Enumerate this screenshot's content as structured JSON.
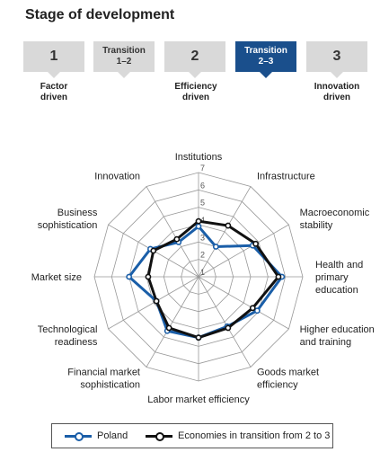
{
  "title": "Stage of development",
  "stages": [
    {
      "label": "1",
      "size": "big",
      "active": false
    },
    {
      "label": "Transition\n1–2",
      "size": "small",
      "active": false
    },
    {
      "label": "2",
      "size": "big",
      "active": false
    },
    {
      "label": "Transition\n2–3",
      "size": "small",
      "active": true
    },
    {
      "label": "3",
      "size": "big",
      "active": false
    }
  ],
  "stage_labels": [
    "Factor\ndriven",
    "Efficiency\ndriven",
    "Innovation\ndriven"
  ],
  "colors": {
    "poland": "#1a5ea8",
    "transition": "#111111",
    "grid": "#999999"
  },
  "chart_data": {
    "type": "radar",
    "categories": [
      "Institutions",
      "Infrastructure",
      "Macroeconomic stability",
      "Health and primary education",
      "Higher education and training",
      "Goods market efficiency",
      "Labor market efficiency",
      "Financial market sophistication",
      "Technological readiness",
      "Market size",
      "Business sophistication",
      "Innovation"
    ],
    "category_lines": [
      [
        "Institutions"
      ],
      [
        "Infrastructure"
      ],
      [
        "Macroeconomic",
        "stability"
      ],
      [
        "Health and",
        "primary",
        "education"
      ],
      [
        "Higher education",
        "and training"
      ],
      [
        "Goods market",
        "efficiency"
      ],
      [
        "Labor market efficiency"
      ],
      [
        "Financial market",
        "sophistication"
      ],
      [
        "Technological",
        "readiness"
      ],
      [
        "Market size"
      ],
      [
        "Business",
        "sophistication"
      ],
      [
        "Innovation"
      ]
    ],
    "rlim": [
      1,
      7
    ],
    "ticks": [
      1,
      2,
      3,
      4,
      5,
      6,
      7
    ],
    "series": [
      {
        "name": "Poland",
        "values": [
          3.9,
          3.0,
          4.6,
          5.8,
          4.9,
          4.3,
          4.5,
          4.6,
          3.8,
          5.0,
          4.2,
          3.3
        ]
      },
      {
        "name": "Economies in transition from 2 to 3",
        "values": [
          4.2,
          4.4,
          4.8,
          5.6,
          4.6,
          4.4,
          4.5,
          4.4,
          3.8,
          3.9,
          4.0,
          3.5
        ]
      }
    ]
  }
}
